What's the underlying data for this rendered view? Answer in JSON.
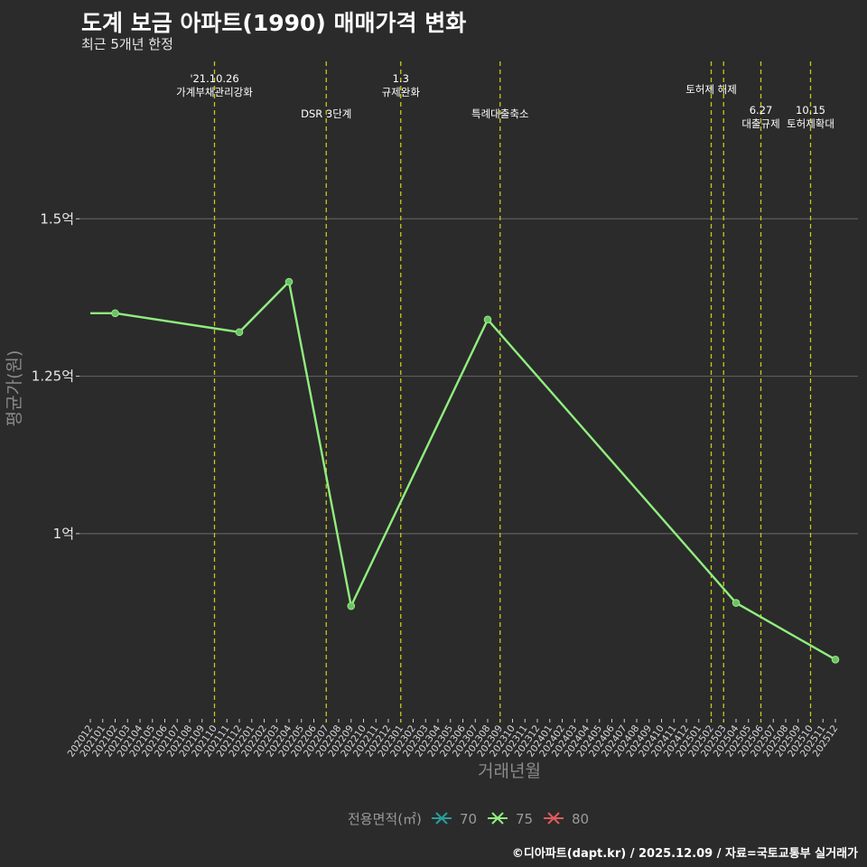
{
  "header": {
    "title": "도계 보금 아파트(1990) 매매가격 변화",
    "subtitle": "최근 5개년 한정"
  },
  "caption": "©디아파트(dapt.kr) / 2025.12.09 / 자료=국토교통부 실거래가",
  "chart_data": {
    "type": "line",
    "title": "도계 보금 아파트(1990) 매매가격 변화",
    "subtitle": "최근 5개년 한정",
    "xlabel": "거래년월",
    "ylabel": "평균가(원)",
    "categories": [
      "202012",
      "202101",
      "202102",
      "202103",
      "202104",
      "202105",
      "202106",
      "202107",
      "202108",
      "202109",
      "202110",
      "202111",
      "202112",
      "202201",
      "202202",
      "202203",
      "202204",
      "202205",
      "202206",
      "202207",
      "202208",
      "202209",
      "202210",
      "202211",
      "202212",
      "202301",
      "202302",
      "202303",
      "202304",
      "202305",
      "202306",
      "202307",
      "202308",
      "202309",
      "202310",
      "202311",
      "202312",
      "202401",
      "202402",
      "202403",
      "202404",
      "202405",
      "202406",
      "202407",
      "202408",
      "202409",
      "202410",
      "202411",
      "202412",
      "202501",
      "202502",
      "202503",
      "202504",
      "202505",
      "202506",
      "202507",
      "202508",
      "202509",
      "202510",
      "202511",
      "202512"
    ],
    "ylim": [
      0.7,
      1.75
    ],
    "yticks": [
      {
        "value": 1.0,
        "label": "1억"
      },
      {
        "value": 1.25,
        "label": "1.25억"
      },
      {
        "value": 1.5,
        "label": "1.5억"
      }
    ],
    "series": [
      {
        "name": "75",
        "color": "#90ee7e",
        "points": [
          {
            "x": "202102",
            "y": 1.35
          },
          {
            "x": "202112",
            "y": 1.32
          },
          {
            "x": "202204",
            "y": 1.4
          },
          {
            "x": "202209",
            "y": 0.885
          },
          {
            "x": "202308",
            "y": 1.34
          },
          {
            "x": "202504",
            "y": 0.89
          },
          {
            "x": "202512",
            "y": 0.8
          }
        ],
        "line_start": {
          "x": "202012",
          "y": 1.35
        }
      }
    ],
    "events": [
      {
        "x": "202110",
        "label": [
          "'21.10.26",
          "가계부채관리강화"
        ],
        "row": 0
      },
      {
        "x": "202207",
        "label": [
          "DSR 3단계"
        ],
        "row": 1
      },
      {
        "x": "202301",
        "label": [
          "1.3",
          "규제완화"
        ],
        "row": 0
      },
      {
        "x": "202309",
        "label": [
          "특례대출축소"
        ],
        "row": 1
      },
      {
        "x": "202502",
        "label": [
          "토허제 해제"
        ],
        "row": 0,
        "anchor": "right"
      },
      {
        "x": "202503",
        "label": [],
        "row": 0
      },
      {
        "x": "202506",
        "label": [
          "6.27",
          "대출규제"
        ],
        "row": 1
      },
      {
        "x": "202510",
        "label": [
          "10.15",
          "토허제확대"
        ],
        "row": 1
      }
    ],
    "legend": {
      "title": "전용면적(㎡)",
      "position": "bottom",
      "items": [
        {
          "label": "70",
          "color": "#2a9d9a"
        },
        {
          "label": "75",
          "color": "#90ee7e"
        },
        {
          "label": "80",
          "color": "#e05a5a"
        }
      ]
    }
  }
}
